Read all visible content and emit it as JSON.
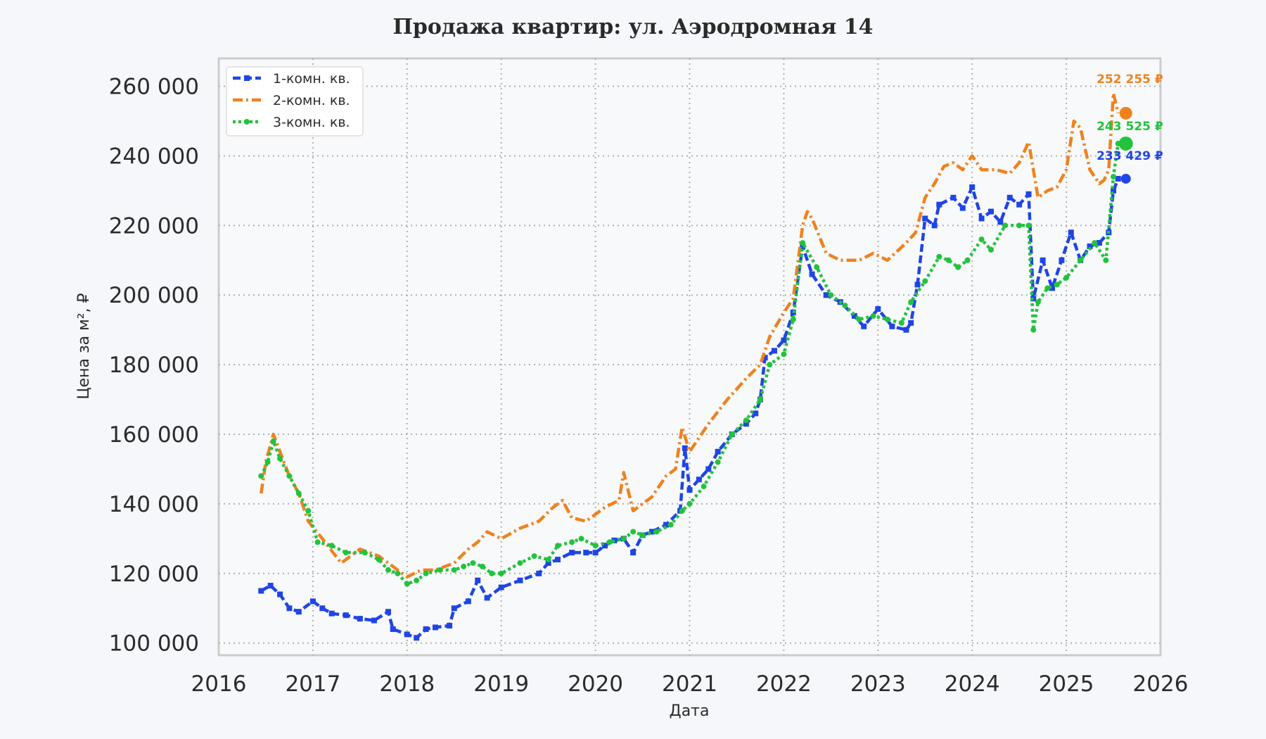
{
  "chart_data": {
    "type": "line",
    "title": "Продажа квартир: ул. Аэродромная 14",
    "xlabel": "Дата",
    "ylabel": "Цена за м², ₽",
    "xlim": [
      2016.0,
      2026.0
    ],
    "ylim": [
      96500,
      268000
    ],
    "x_ticks": [
      2016,
      2017,
      2018,
      2019,
      2020,
      2021,
      2022,
      2023,
      2024,
      2025,
      2026
    ],
    "x_tick_labels": [
      "2016",
      "2017",
      "2018",
      "2019",
      "2020",
      "2021",
      "2022",
      "2023",
      "2024",
      "2025",
      "2026"
    ],
    "y_ticks": [
      100000,
      120000,
      140000,
      160000,
      180000,
      200000,
      220000,
      240000,
      260000
    ],
    "y_tick_labels": [
      "100 000",
      "120 000",
      "140 000",
      "160 000",
      "180 000",
      "200 000",
      "220 000",
      "240 000",
      "260 000"
    ],
    "grid": true,
    "legend_position": "top-left",
    "series": [
      {
        "name": "1-комн. кв.",
        "color": "#1f45e6",
        "line_style": "dashed",
        "marker": "square",
        "end_value": 233429,
        "end_label": "233 429 ₽",
        "x": [
          2016.45,
          2016.55,
          2016.65,
          2016.75,
          2016.85,
          2017.0,
          2017.1,
          2017.2,
          2017.35,
          2017.5,
          2017.65,
          2017.8,
          2017.85,
          2018.0,
          2018.1,
          2018.2,
          2018.3,
          2018.45,
          2018.5,
          2018.65,
          2018.75,
          2018.85,
          2019.0,
          2019.2,
          2019.4,
          2019.5,
          2019.6,
          2019.75,
          2019.9,
          2020.0,
          2020.1,
          2020.2,
          2020.3,
          2020.4,
          2020.5,
          2020.6,
          2020.75,
          2020.9,
          2020.95,
          2021.0,
          2021.1,
          2021.2,
          2021.3,
          2021.45,
          2021.6,
          2021.7,
          2021.75,
          2021.8,
          2021.9,
          2022.0,
          2022.1,
          2022.2,
          2022.3,
          2022.45,
          2022.6,
          2022.75,
          2022.85,
          2023.0,
          2023.15,
          2023.3,
          2023.35,
          2023.42,
          2023.5,
          2023.6,
          2023.65,
          2023.8,
          2023.9,
          2024.0,
          2024.1,
          2024.2,
          2024.3,
          2024.4,
          2024.5,
          2024.6,
          2024.65,
          2024.75,
          2024.85,
          2024.95,
          2025.05,
          2025.15,
          2025.25,
          2025.35,
          2025.45,
          2025.5,
          2025.55
        ],
        "values": [
          115000,
          116500,
          114000,
          110000,
          109000,
          112000,
          110000,
          108500,
          108000,
          107000,
          106500,
          109000,
          104000,
          102500,
          101500,
          104000,
          104500,
          105000,
          110000,
          112000,
          118000,
          113000,
          116000,
          118000,
          120000,
          123000,
          124000,
          126000,
          126000,
          126000,
          128000,
          129500,
          130000,
          126000,
          131000,
          132000,
          134000,
          138000,
          156000,
          144000,
          147000,
          150000,
          155000,
          160000,
          163000,
          166000,
          170000,
          182000,
          184000,
          187000,
          195000,
          214000,
          206000,
          200000,
          198000,
          194000,
          191000,
          196000,
          191000,
          190000,
          192000,
          203000,
          222000,
          220000,
          226000,
          228000,
          225000,
          231000,
          222000,
          224000,
          221000,
          228000,
          226000,
          229000,
          199000,
          210000,
          202000,
          210000,
          218000,
          210000,
          214000,
          215000,
          218000,
          230000,
          233429
        ]
      },
      {
        "name": "2-комн. кв.",
        "color": "#f0821e",
        "line_style": "dash-dot",
        "marker": "none",
        "end_value": 252255,
        "end_label": "252 255 ₽",
        "x": [
          2016.45,
          2016.5,
          2016.58,
          2016.65,
          2016.75,
          2016.85,
          2016.95,
          2017.1,
          2017.3,
          2017.5,
          2017.7,
          2017.85,
          2018.0,
          2018.15,
          2018.3,
          2018.5,
          2018.65,
          2018.75,
          2018.85,
          2019.0,
          2019.2,
          2019.4,
          2019.55,
          2019.65,
          2019.75,
          2019.9,
          2020.1,
          2020.25,
          2020.3,
          2020.4,
          2020.6,
          2020.75,
          2020.85,
          2020.92,
          2021.0,
          2021.2,
          2021.4,
          2021.6,
          2021.75,
          2021.85,
          2022.0,
          2022.1,
          2022.2,
          2022.25,
          2022.3,
          2022.45,
          2022.6,
          2022.8,
          2022.95,
          2023.1,
          2023.3,
          2023.4,
          2023.5,
          2023.6,
          2023.7,
          2023.8,
          2023.9,
          2024.0,
          2024.1,
          2024.25,
          2024.4,
          2024.5,
          2024.6,
          2024.7,
          2024.8,
          2024.9,
          2025.0,
          2025.08,
          2025.15,
          2025.25,
          2025.35,
          2025.4,
          2025.45,
          2025.5,
          2025.55
        ],
        "values": [
          143000,
          152000,
          160000,
          155000,
          148000,
          143000,
          135000,
          130000,
          123000,
          127000,
          125000,
          122000,
          119000,
          121000,
          121000,
          123000,
          127000,
          129000,
          132000,
          130000,
          133000,
          135000,
          139000,
          141000,
          136000,
          135000,
          139000,
          141000,
          149000,
          138000,
          142000,
          148000,
          150000,
          162000,
          155000,
          163000,
          170000,
          176000,
          180000,
          188000,
          195000,
          199000,
          220000,
          224000,
          222000,
          212000,
          210000,
          210000,
          212000,
          210000,
          215000,
          218000,
          228000,
          232000,
          237000,
          238000,
          236000,
          240000,
          236000,
          236000,
          235000,
          238000,
          244000,
          228000,
          230000,
          231000,
          236000,
          250000,
          248000,
          236000,
          232000,
          233000,
          236000,
          258000,
          252255
        ]
      },
      {
        "name": "3-комн. кв.",
        "color": "#22c33c",
        "line_style": "dotted",
        "marker": "circle",
        "end_value": 243525,
        "end_label": "243 525 ₽",
        "x": [
          2016.45,
          2016.52,
          2016.58,
          2016.65,
          2016.75,
          2016.85,
          2016.95,
          2017.05,
          2017.2,
          2017.35,
          2017.55,
          2017.7,
          2017.8,
          2017.9,
          2018.0,
          2018.1,
          2018.2,
          2018.35,
          2018.5,
          2018.6,
          2018.7,
          2018.8,
          2018.9,
          2019.0,
          2019.2,
          2019.35,
          2019.5,
          2019.6,
          2019.75,
          2019.85,
          2020.0,
          2020.15,
          2020.3,
          2020.4,
          2020.5,
          2020.65,
          2020.8,
          2020.92,
          2021.0,
          2021.15,
          2021.3,
          2021.45,
          2021.6,
          2021.75,
          2021.85,
          2022.0,
          2022.1,
          2022.2,
          2022.35,
          2022.5,
          2022.65,
          2022.8,
          2022.95,
          2023.1,
          2023.25,
          2023.35,
          2023.5,
          2023.65,
          2023.75,
          2023.85,
          2023.95,
          2024.1,
          2024.2,
          2024.35,
          2024.5,
          2024.6,
          2024.65,
          2024.7,
          2024.8,
          2024.9,
          2025.0,
          2025.15,
          2025.3,
          2025.42,
          2025.5,
          2025.55
        ],
        "values": [
          148000,
          152000,
          158000,
          153000,
          148000,
          143000,
          138000,
          129000,
          128000,
          126000,
          126000,
          124000,
          121000,
          120000,
          117000,
          118000,
          120000,
          121000,
          121000,
          122000,
          123000,
          122000,
          120000,
          120000,
          123000,
          125000,
          124000,
          128000,
          129000,
          130000,
          128000,
          129000,
          130000,
          132000,
          131000,
          132000,
          134000,
          138000,
          140000,
          145000,
          152000,
          160000,
          164000,
          170000,
          180000,
          183000,
          193000,
          215000,
          208000,
          200000,
          197000,
          193000,
          194000,
          193000,
          192000,
          198000,
          204000,
          211000,
          210000,
          208000,
          210000,
          216000,
          213000,
          220000,
          220000,
          220000,
          190000,
          198000,
          202000,
          203000,
          205000,
          210000,
          215000,
          210000,
          234000,
          243525
        ]
      }
    ]
  }
}
